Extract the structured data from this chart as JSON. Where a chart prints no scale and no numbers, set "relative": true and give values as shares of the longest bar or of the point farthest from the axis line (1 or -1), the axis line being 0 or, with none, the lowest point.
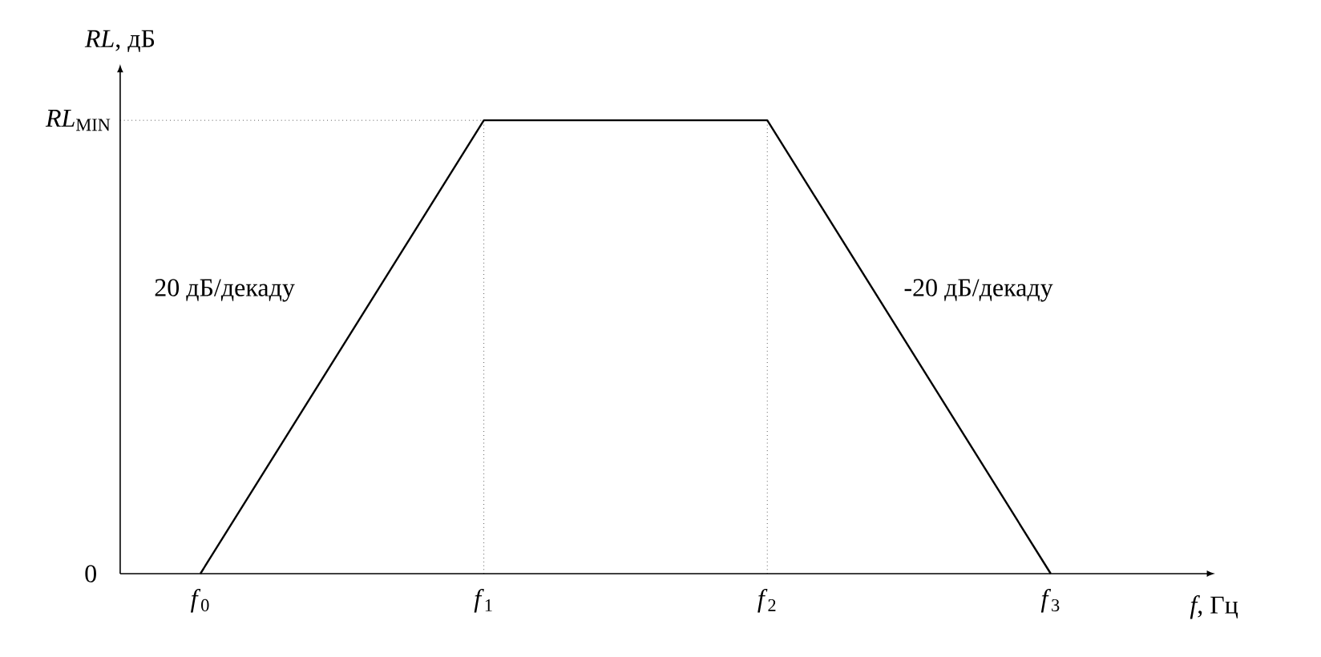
{
  "chart_data": {
    "type": "line",
    "relative": true,
    "xlabel": "*f*, Гц",
    "ylabel": "*RL*, дБ",
    "categories": [
      "*f*$_{0}$",
      "*f*$_{1}$",
      "*f*$_{2}$",
      "*f*$_{3}$"
    ],
    "values": [
      0,
      1,
      1,
      0
    ],
    "color": "#000000",
    "line_style": "solid",
    "marker": "none",
    "ref_lines": [
      {
        "axis": "y",
        "value": 1,
        "label": "*RL*$_{MIN}$",
        "line_style": "dotted"
      },
      {
        "axis": "x",
        "value": "*f*$_{1}$",
        "line_style": "dotted"
      },
      {
        "axis": "x",
        "value": "*f*$_{2}$",
        "line_style": "dotted"
      }
    ],
    "annotations": [
      "0",
      "20 дБ/декаду",
      "-20 дБ/декаду"
    ]
  }
}
